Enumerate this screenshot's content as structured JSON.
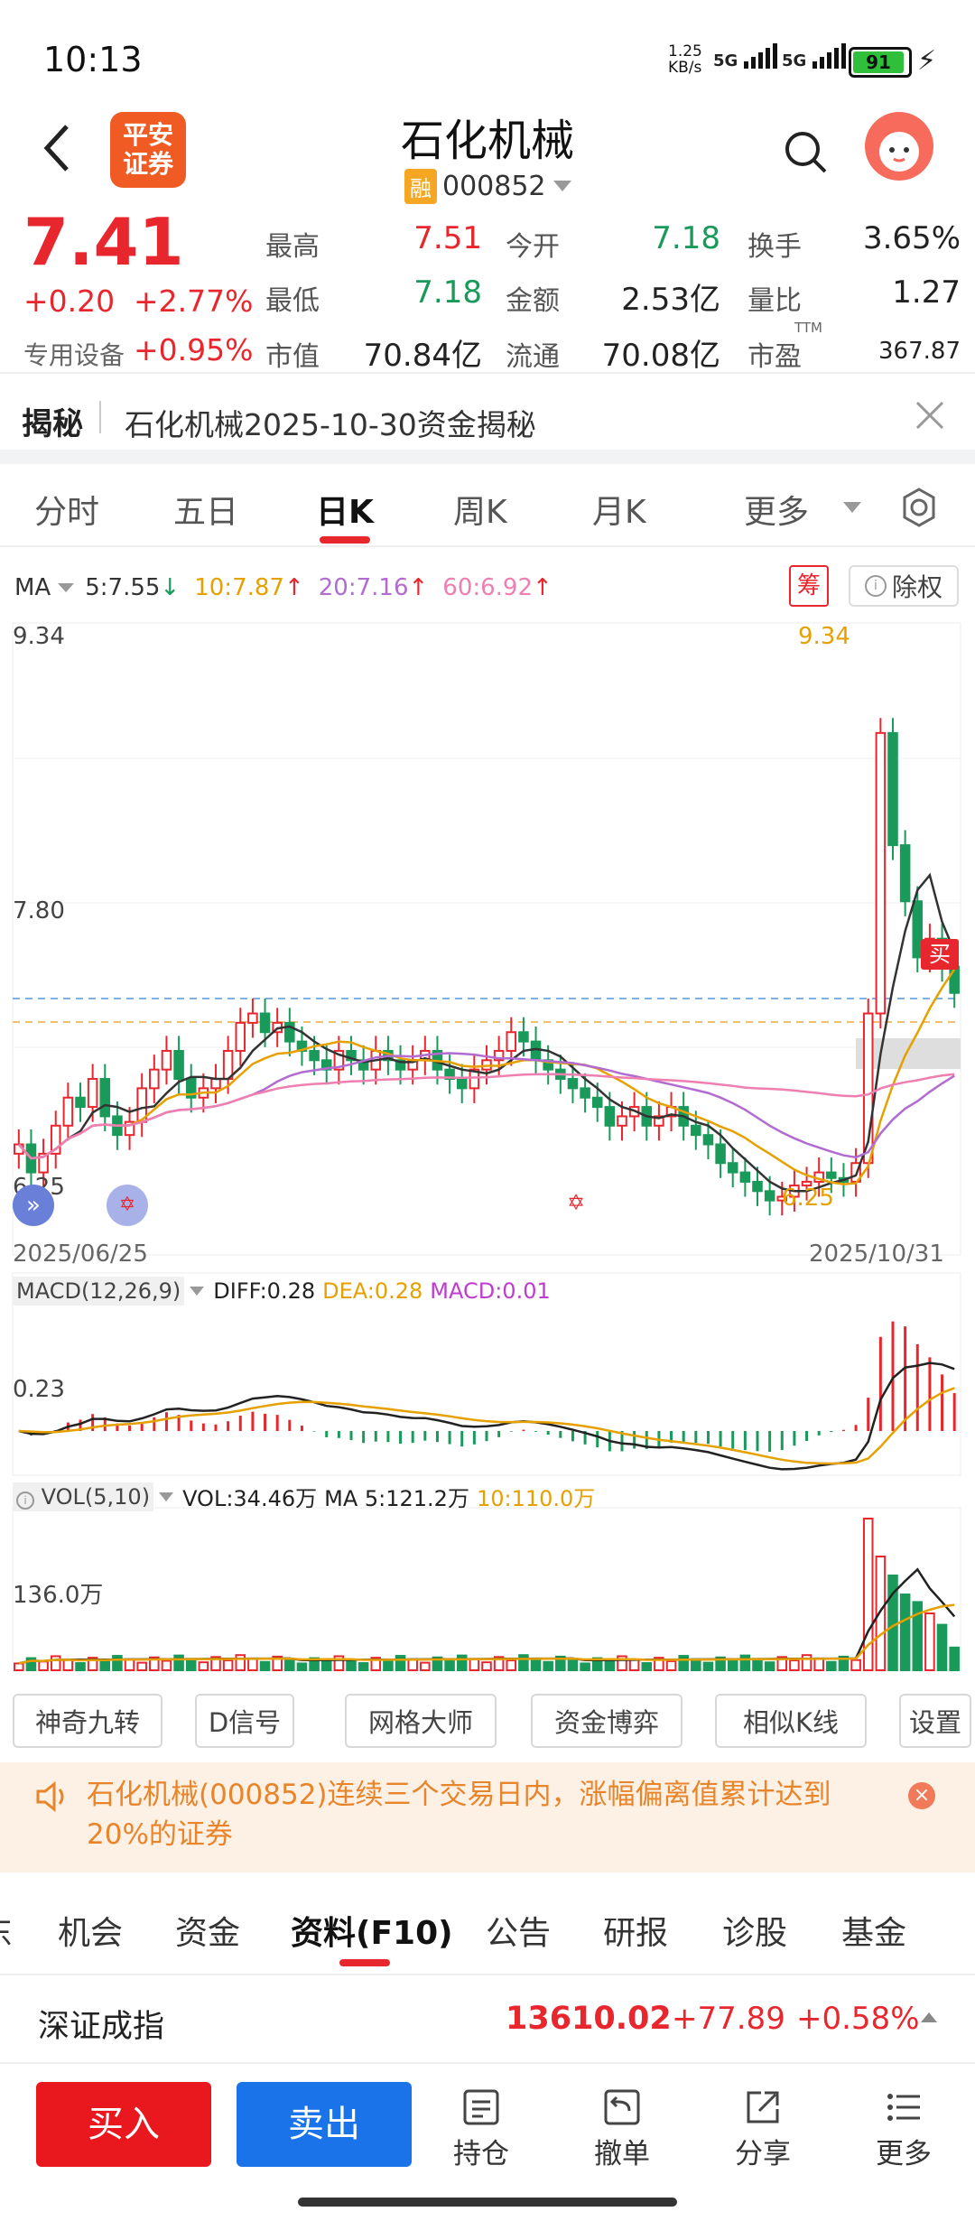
{
  "status_bar": {
    "time": "10:13",
    "net_speed": "1.25\nKB/s",
    "sig1": "5G",
    "sig2": "5G",
    "battery": "91"
  },
  "header": {
    "broker_logo_top": "平安",
    "broker_logo_bottom": "证券",
    "title": "石化机械",
    "margin_badge": "融",
    "code": "000852"
  },
  "quote": {
    "price": "7.41",
    "change": "+0.20",
    "change_pct": "+2.77%",
    "sector": "专用设备",
    "sector_change": "+0.95%",
    "fields": [
      {
        "label": "最高",
        "value": "7.51",
        "color": "#e8262d"
      },
      {
        "label": "今开",
        "value": "7.18",
        "color": "#1a9a5a"
      },
      {
        "label": "换手",
        "value": "3.65%",
        "color": "#222222"
      },
      {
        "label": "最低",
        "value": "7.18",
        "color": "#1a9a5a"
      },
      {
        "label": "金额",
        "value": "2.53亿",
        "color": "#222222"
      },
      {
        "label": "量比",
        "value": "1.27",
        "color": "#222222"
      },
      {
        "label": "市值",
        "value": "70.84亿",
        "color": "#222222"
      },
      {
        "label": "流通",
        "value": "70.08亿",
        "color": "#222222"
      },
      {
        "label": "市盈",
        "value": "367.87",
        "color": "#222222"
      }
    ],
    "pe_sup": "TTM"
  },
  "reveal": {
    "tag": "揭秘",
    "text": "石化机械2025-10-30资金揭秘"
  },
  "period_tabs": [
    "分时",
    "五日",
    "日K",
    "周K",
    "月K",
    "更多"
  ],
  "active_period": "日K",
  "ma": {
    "label": "MA",
    "items": [
      {
        "text": "5:7.55",
        "arrow": "↓",
        "color": "#333333",
        "arrow_color": "#1a9a5a"
      },
      {
        "text": "10:7.87",
        "arrow": "↑",
        "color": "#e6a000",
        "arrow_color": "#e8262d"
      },
      {
        "text": "20:7.16",
        "arrow": "↑",
        "color": "#b26bd0",
        "arrow_color": "#e8262d"
      },
      {
        "text": "60:6.92",
        "arrow": "↑",
        "color": "#ee7fb0",
        "arrow_color": "#e8262d"
      }
    ],
    "chip_button": "筹",
    "exright_button": "除权"
  },
  "kline": {
    "y_top": "9.34",
    "y_mid": "7.80",
    "y_bottom": "6.25",
    "high_marker": "9.34",
    "low_marker": "6.25",
    "date_start": "2025/06/25",
    "date_end": "2025/10/31",
    "buy_marker": "买"
  },
  "macd": {
    "label": "MACD(12,26,9)",
    "diff": "DIFF:0.28",
    "dea": "DEA:0.28",
    "macd": "MACD:0.01",
    "y_label": "0.23"
  },
  "vol": {
    "label": "VOL(5,10)",
    "vol": "VOL:34.46万",
    "ma5": "MA 5:121.2万",
    "ma10": "10:110.0万",
    "y_label": "136.0万"
  },
  "tools": [
    "神奇九转",
    "D信号",
    "网格大师",
    "资金博弈",
    "相似K线",
    "设置"
  ],
  "alert": {
    "text": "石化机械(000852)连续三个交易日内，涨幅偏离值累计达到20%的证券"
  },
  "footer_tabs": [
    "东",
    "机会",
    "资金",
    "资料(F10)",
    "公告",
    "研报",
    "诊股",
    "基金"
  ],
  "active_footer_tab": "资料(F10)",
  "index": {
    "name": "深证成指",
    "value": "13610.02",
    "change": "+77.89",
    "change_pct": "+0.58%"
  },
  "bottom_bar": {
    "buy": "买入",
    "sell": "卖出",
    "hold": "持仓",
    "cancel": "撤单",
    "share": "分享",
    "more": "更多"
  },
  "chart_data": [
    {
      "type": "candlestick",
      "title": "",
      "x_start": "2025/06/25",
      "x_end": "2025/10/31",
      "ylim": [
        6.25,
        9.34
      ],
      "series": [
        {
          "name": "5",
          "last": 7.55
        },
        {
          "name": "10",
          "last": 7.87
        },
        {
          "name": "20",
          "last": 7.16
        },
        {
          "name": "60",
          "last": 6.92
        }
      ],
      "closes": [
        6.6,
        6.45,
        6.55,
        6.7,
        6.85,
        6.8,
        6.95,
        6.75,
        6.65,
        6.72,
        6.9,
        7.0,
        7.1,
        6.95,
        6.85,
        6.9,
        6.95,
        7.1,
        7.25,
        7.3,
        7.2,
        7.25,
        7.15,
        7.1,
        7.05,
        7.0,
        7.1,
        7.05,
        7.0,
        7.1,
        7.05,
        7.0,
        7.05,
        7.1,
        7.0,
        6.95,
        6.9,
        7.0,
        7.05,
        7.1,
        7.2,
        7.15,
        7.05,
        7.0,
        6.95,
        6.9,
        6.85,
        6.8,
        6.7,
        6.75,
        6.8,
        6.7,
        6.75,
        6.8,
        6.7,
        6.65,
        6.6,
        6.5,
        6.45,
        6.4,
        6.35,
        6.3,
        6.32,
        6.38,
        6.4,
        6.45,
        6.42,
        6.4,
        6.5,
        7.3,
        8.8,
        8.2,
        7.9,
        7.6,
        7.7,
        7.55,
        7.41
      ]
    },
    {
      "type": "bar",
      "title": "MACD(12,26,9)",
      "series": [
        {
          "name": "DIFF",
          "last": 0.28
        },
        {
          "name": "DEA",
          "last": 0.28
        },
        {
          "name": "MACD",
          "last": 0.01
        }
      ]
    },
    {
      "type": "bar",
      "title": "VOL(5,10)",
      "series": [
        {
          "name": "VOL",
          "last": "34.46万"
        },
        {
          "name": "MA 5",
          "last": "121.2万"
        },
        {
          "name": "10",
          "last": "110.0万"
        }
      ]
    }
  ]
}
